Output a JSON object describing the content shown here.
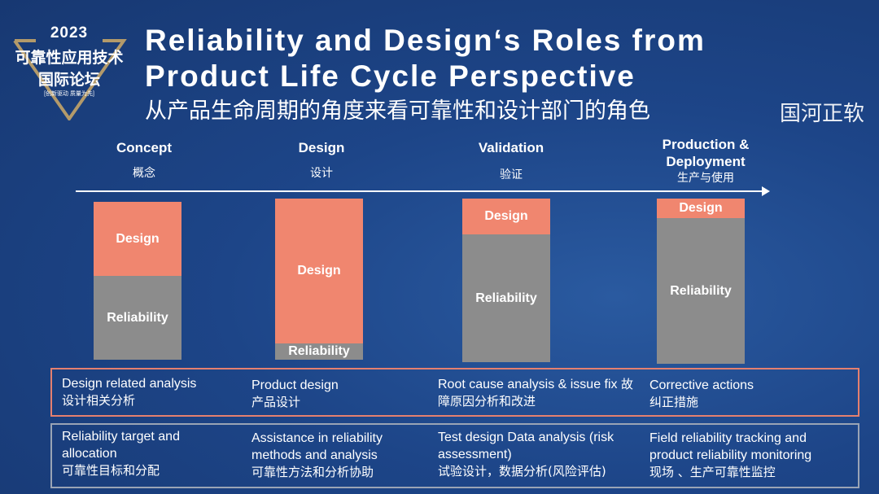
{
  "logo": {
    "year": "2023",
    "line1": "可靠性应用技术",
    "line2": "国际论坛",
    "tagline": "[创新驱动 质量为先]"
  },
  "header": {
    "title_line1": "Reliability and Design‘s Roles from",
    "title_line2": "Product Life Cycle Perspective",
    "subtitle": "从产品生命周期的角度来看可靠性和设计部门的角色"
  },
  "phases": [
    {
      "en": "Concept",
      "cn": "概念",
      "design_label": "Design",
      "reliability_label": "Reliability",
      "design_share": 0.47,
      "reliability_share": 0.53
    },
    {
      "en": "Design",
      "cn": "设计",
      "design_label": "Design",
      "reliability_label": "Reliability",
      "design_share": 0.9,
      "reliability_share": 0.1
    },
    {
      "en": "Validation",
      "cn": "验证",
      "design_label": "Design",
      "reliability_label": "Reliability",
      "design_share": 0.22,
      "reliability_share": 0.78
    },
    {
      "en": "Production & Deployment",
      "cn": "生产与使用",
      "design_label": "Design",
      "reliability_label": "Reliability",
      "design_share": 0.12,
      "reliability_share": 0.88
    }
  ],
  "design_row": [
    {
      "en": "Design related analysis",
      "cn": "设计相关分析"
    },
    {
      "en": "Product design",
      "cn": "产品设计"
    },
    {
      "en": "Root cause analysis & issue fix",
      "cn": "故障原因分析和改进"
    },
    {
      "en": "Corrective actions",
      "cn": "纠正措施"
    }
  ],
  "reliability_row": [
    {
      "en": "Reliability target  and allocation",
      "cn": "可靠性目标和分配"
    },
    {
      "en": "Assistance in reliability methods and analysis",
      "cn": "可靠性方法和分析协助"
    },
    {
      "en": "Test design Data analysis (risk assessment)",
      "cn": "试验设计，数据分析(风险评估)"
    },
    {
      "en": "Field reliability tracking and product reliability monitoring",
      "cn": "现场 、生产可靠性监控"
    }
  ],
  "watermark": "国河正软",
  "colors": {
    "design": "#f0866f",
    "reliability": "#8c8c8c",
    "background": "#1d4588"
  }
}
